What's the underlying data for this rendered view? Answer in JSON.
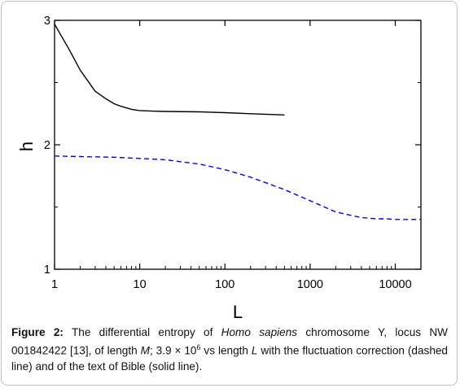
{
  "chart_data": {
    "type": "line",
    "xlabel": "L",
    "ylabel": "h",
    "xscale": "log",
    "xlim": [
      1,
      20000
    ],
    "ylim": [
      1,
      3
    ],
    "x_tick_labels": [
      "1",
      "10",
      "100",
      "1000",
      "10000"
    ],
    "y_tick_labels": [
      "1",
      "2",
      "3"
    ],
    "grid": false,
    "series": [
      {
        "style": "solid",
        "color": "#000000",
        "x": [
          1,
          1.5,
          2,
          3,
          4,
          5,
          6,
          8,
          10,
          15,
          20,
          50,
          100,
          200,
          500
        ],
        "y": [
          2.97,
          2.76,
          2.6,
          2.43,
          2.37,
          2.33,
          2.31,
          2.285,
          2.275,
          2.27,
          2.268,
          2.265,
          2.258,
          2.25,
          2.24
        ]
      },
      {
        "style": "dashed",
        "color": "#0000ff",
        "x": [
          1,
          2,
          5,
          10,
          20,
          50,
          100,
          200,
          500,
          1000,
          2000,
          4000,
          6000,
          8000,
          10000,
          20000
        ],
        "y": [
          1.91,
          1.905,
          1.9,
          1.89,
          1.88,
          1.845,
          1.8,
          1.74,
          1.64,
          1.55,
          1.46,
          1.415,
          1.405,
          1.405,
          1.4,
          1.4
        ]
      }
    ]
  },
  "caption": {
    "label": "Figure 2:",
    "text_1": " The differential entropy of ",
    "species": "Homo sapiens",
    "text_2": " chromosome Y, locus NW 001842422 [13], of length ",
    "m": "M",
    "text_3": "; 3.9 × 10",
    "exponent": "6",
    "text_4": " vs length ",
    "l": "L",
    "text_5": " with the fluctuation correction (dashed line) and of the text of Bible (solid line)."
  }
}
